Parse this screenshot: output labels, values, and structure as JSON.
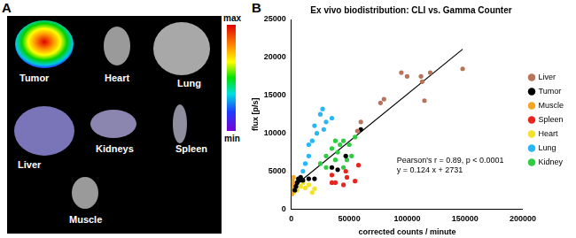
{
  "chart_data": {
    "type": "scatter",
    "panel_label": "B",
    "title": "Ex vivo biodistribution: CLI vs. Gamma Counter",
    "x_label": "corrected counts / minute",
    "y_label": "flux [p/s]",
    "xlim": [
      0,
      200000
    ],
    "xticks": [
      0,
      50000,
      100000,
      150000,
      200000
    ],
    "ylim": [
      0,
      25000
    ],
    "yticks": [
      0,
      5000,
      10000,
      15000,
      20000,
      25000
    ],
    "grid": false,
    "legend": "right",
    "marker": "circle",
    "series": [
      {
        "name": "Liver",
        "color": "#b8735a",
        "x": [
          57000,
          60000,
          77000,
          80000,
          95000,
          100000,
          112000,
          113000,
          115000,
          120000,
          148000
        ],
        "values": [
          10300,
          11500,
          14000,
          14500,
          18000,
          17500,
          17500,
          16800,
          14300,
          18000,
          18500
        ]
      },
      {
        "name": "Tumor",
        "color": "#000000",
        "x": [
          3000,
          4000,
          5000,
          6000,
          7000,
          8000,
          10000,
          15000,
          20000,
          35000,
          40000,
          47000,
          60000
        ],
        "values": [
          2500,
          3000,
          3500,
          4000,
          3800,
          4200,
          3800,
          4000,
          4000,
          5500,
          5200,
          7000,
          10500
        ]
      },
      {
        "name": "Muscle",
        "color": "#f5a623",
        "x": [
          500,
          800,
          1000,
          1200,
          1500,
          2000,
          700,
          1800,
          2500
        ],
        "values": [
          2000,
          2500,
          3000,
          3500,
          2800,
          3200,
          3800,
          4200,
          2500
        ]
      },
      {
        "name": "Spleen",
        "color": "#e8261e",
        "x": [
          35000,
          38000,
          45000,
          48000,
          35000,
          55000,
          58000,
          47000
        ],
        "values": [
          4500,
          3500,
          3200,
          4200,
          3500,
          3700,
          5800,
          5000
        ]
      },
      {
        "name": "Heart",
        "color": "#f2e22a",
        "x": [
          2000,
          3000,
          5000,
          8000,
          12000,
          15000,
          18000,
          20000,
          10000
        ],
        "values": [
          2200,
          3000,
          2500,
          3000,
          2800,
          3200,
          2200,
          2700,
          3500
        ]
      },
      {
        "name": "Lung",
        "color": "#29b6f6",
        "x": [
          10000,
          12000,
          15000,
          18000,
          20000,
          25000,
          27000,
          22000,
          30000,
          35000,
          28000,
          15000
        ],
        "values": [
          5000,
          6000,
          7000,
          9000,
          11000,
          12500,
          13200,
          10000,
          11500,
          12000,
          10500,
          8500
        ]
      },
      {
        "name": "Kidney",
        "color": "#2ecc40",
        "x": [
          30000,
          35000,
          38000,
          40000,
          42000,
          45000,
          48000,
          50000,
          52000,
          55000,
          30000,
          38000,
          25000,
          45000
        ],
        "values": [
          7000,
          8000,
          6500,
          7500,
          8500,
          9000,
          6500,
          8500,
          7000,
          9500,
          5500,
          9000,
          6000,
          5500
        ]
      }
    ],
    "fit": {
      "slope": 0.124,
      "intercept": 2731,
      "x_range": [
        0,
        148000
      ],
      "color": "#000000"
    },
    "annotations": [
      "Pearson's r = 0.89, p < 0.0001",
      "y = 0.124 x + 2731"
    ]
  },
  "image_panel": {
    "panel_label": "A",
    "organs": [
      "Tumor",
      "Heart",
      "Lung",
      "Liver",
      "Kidneys",
      "Spleen",
      "Muscle"
    ],
    "color_bar": {
      "max_label": "max",
      "min_label": "min"
    }
  }
}
